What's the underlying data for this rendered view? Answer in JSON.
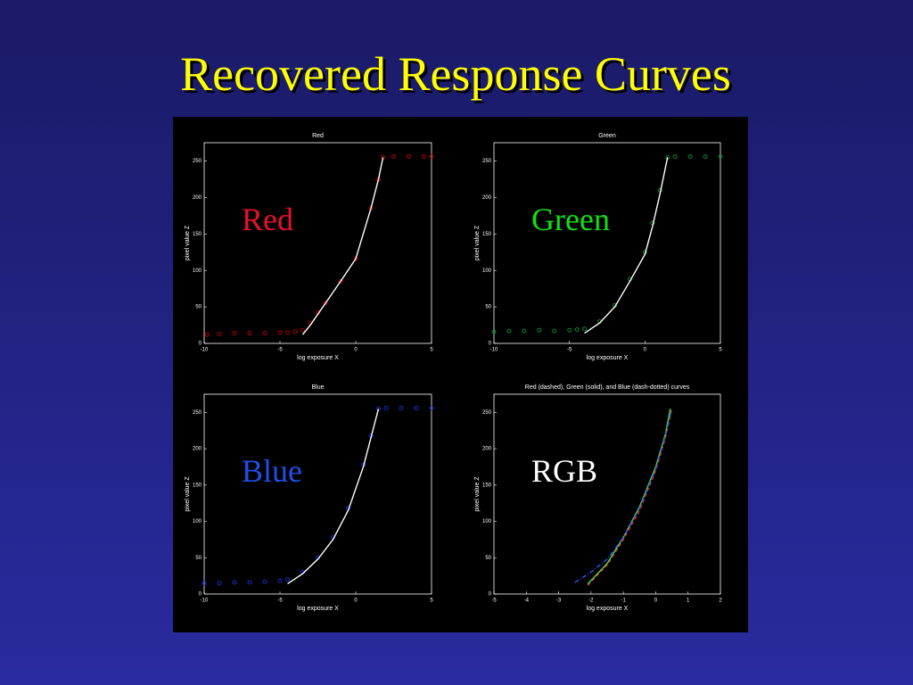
{
  "title": "Recovered Response Curves",
  "chart_data": [
    {
      "type": "line",
      "title": "Red",
      "x_label": "log exposure X",
      "y_label": "pixel value Z",
      "annotation": "Red",
      "annotation_color": "#e8102a",
      "xlim": [
        -10,
        5
      ],
      "xticks": [
        -10,
        -5,
        0,
        5
      ],
      "ylim": [
        0,
        275
      ],
      "yticks": [
        0,
        50,
        100,
        150,
        200,
        250
      ],
      "series": [
        {
          "style": "points",
          "color": "#b00000",
          "x": [
            -9.8,
            -9,
            -8,
            -7,
            -6,
            -5,
            -4.5,
            -4,
            -3.5,
            -3,
            -2.5,
            -2,
            -1,
            0,
            1,
            1.5,
            1.8,
            2.5,
            3.5,
            4.5,
            5
          ],
          "values": [
            12,
            13,
            14,
            14,
            14,
            15,
            15,
            16,
            18,
            28,
            42,
            55,
            85,
            116,
            185,
            225,
            255,
            256,
            256,
            256,
            256
          ]
        },
        {
          "style": "solid",
          "color": "#ffffff",
          "x": [
            -3.5,
            -3,
            -2,
            -1,
            0,
            1,
            1.5,
            1.8
          ],
          "values": [
            12,
            25,
            55,
            85,
            116,
            185,
            225,
            255
          ]
        }
      ]
    },
    {
      "type": "line",
      "title": "Green",
      "x_label": "log exposure X",
      "y_label": "pixel value Z",
      "annotation": "Green",
      "annotation_color": "#10e010",
      "xlim": [
        -10,
        5
      ],
      "xticks": [
        -10,
        -5,
        0,
        5
      ],
      "ylim": [
        0,
        275
      ],
      "yticks": [
        0,
        50,
        100,
        150,
        200,
        250
      ],
      "series": [
        {
          "style": "points",
          "color": "#0a8a2a",
          "x": [
            -10,
            -9,
            -8,
            -7,
            -6,
            -5,
            -4.5,
            -4,
            -3,
            -2,
            -1,
            0,
            0.5,
            1,
            1.5,
            2,
            3,
            4,
            5
          ],
          "values": [
            16,
            17,
            17,
            18,
            17,
            18,
            19,
            20,
            30,
            52,
            88,
            125,
            165,
            210,
            255,
            256,
            256,
            256,
            256
          ]
        },
        {
          "style": "solid",
          "color": "#ffffff",
          "x": [
            -4,
            -3,
            -2,
            -1,
            0,
            0.5,
            1,
            1.5
          ],
          "values": [
            14,
            28,
            50,
            85,
            122,
            160,
            205,
            255
          ]
        }
      ]
    },
    {
      "type": "line",
      "title": "Blue",
      "x_label": "log exposure X",
      "y_label": "pixel value Z",
      "annotation": "Blue",
      "annotation_color": "#2050e8",
      "xlim": [
        -10,
        5
      ],
      "xticks": [
        -10,
        -5,
        0,
        5
      ],
      "ylim": [
        0,
        275
      ],
      "yticks": [
        0,
        50,
        100,
        150,
        200,
        250
      ],
      "series": [
        {
          "style": "points",
          "color": "#1030d0",
          "x": [
            -10,
            -9,
            -8,
            -7,
            -6,
            -5,
            -4.5,
            -3.5,
            -2.5,
            -1.5,
            -0.5,
            0.5,
            1,
            1.5,
            2,
            3,
            4,
            5
          ],
          "values": [
            15,
            15,
            16,
            16,
            17,
            18,
            20,
            30,
            50,
            78,
            118,
            178,
            218,
            255,
            256,
            256,
            256,
            256
          ]
        },
        {
          "style": "solid",
          "color": "#ffffff",
          "x": [
            -4.5,
            -3.5,
            -2.5,
            -1.5,
            -0.5,
            0.5,
            1,
            1.5
          ],
          "values": [
            14,
            28,
            48,
            75,
            115,
            175,
            215,
            255
          ]
        }
      ]
    },
    {
      "type": "line",
      "title": "Red (dashed), Green (solid), and Blue (dash-dotted) curves",
      "x_label": "log exposure X",
      "y_label": "pixel value Z",
      "annotation": "RGB",
      "annotation_color": "#ffffff",
      "xlim": [
        -5,
        2
      ],
      "xticks": [
        -5,
        -4,
        -3,
        -2,
        -1,
        0,
        1,
        2
      ],
      "ylim": [
        0,
        275
      ],
      "yticks": [
        0,
        50,
        100,
        150,
        200,
        250
      ],
      "series": [
        {
          "style": "dashed",
          "color": "#ff2020",
          "x": [
            -2.1,
            -1.5,
            -1,
            -0.5,
            0,
            0.3,
            0.5
          ],
          "values": [
            12,
            40,
            75,
            115,
            170,
            215,
            255
          ]
        },
        {
          "style": "solid",
          "color": "#40e040",
          "x": [
            -2.1,
            -1.5,
            -1,
            -0.5,
            0,
            0.3,
            0.45
          ],
          "values": [
            14,
            42,
            78,
            120,
            175,
            220,
            255
          ]
        },
        {
          "style": "dash-dot",
          "color": "#3050ff",
          "x": [
            -2.5,
            -2,
            -1.5,
            -1,
            -0.5,
            0,
            0.3,
            0.5
          ],
          "values": [
            16,
            30,
            48,
            78,
            118,
            172,
            218,
            255
          ]
        }
      ]
    }
  ]
}
